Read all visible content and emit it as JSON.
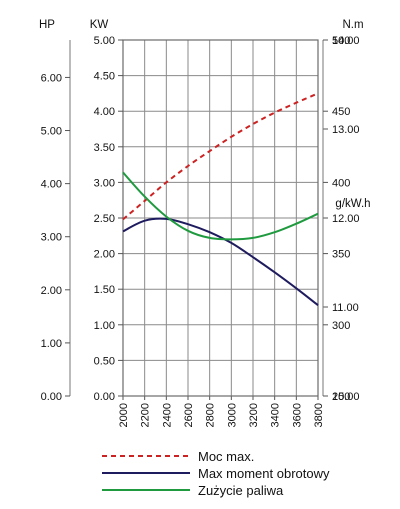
{
  "chart_data": {
    "type": "line",
    "title": "",
    "x": [
      2000,
      2200,
      2400,
      2600,
      2800,
      3000,
      3200,
      3400,
      3600,
      3800
    ],
    "x_tick_labels": [
      "2000",
      "2200",
      "2400",
      "2600",
      "2800",
      "3000",
      "3200",
      "3400",
      "3600",
      "3800"
    ],
    "xlim": [
      2000,
      3800
    ],
    "grid": true,
    "legend_position": "bottom",
    "axes": {
      "hp": {
        "label": "HP",
        "ticks": [
          "0.00",
          "1.00",
          "2.00",
          "3.00",
          "4.00",
          "5.00",
          "6.00"
        ],
        "range": [
          0,
          6.705
        ]
      },
      "kw": {
        "label": "KW",
        "ticks": [
          "0.00",
          "0.50",
          "1.00",
          "1.50",
          "2.00",
          "2.50",
          "3.00",
          "3.50",
          "4.00",
          "4.50",
          "5.00"
        ],
        "range": [
          0,
          5
        ]
      },
      "torque": {
        "label": "N.m",
        "ticks": [
          "10.00",
          "11.00",
          "12.00",
          "13.00",
          "14.00"
        ],
        "range": [
          10,
          14
        ]
      },
      "fuel": {
        "label": "g/kW.h",
        "ticks": [
          "250",
          "300",
          "350",
          "400",
          "450",
          "500"
        ],
        "range": [
          250,
          500
        ]
      }
    },
    "series": [
      {
        "name": "Moc max.",
        "axis": "kw",
        "color": "#cc2222",
        "dash": "dashed",
        "values": [
          2.48,
          2.74,
          3.0,
          3.23,
          3.44,
          3.64,
          3.82,
          3.98,
          4.12,
          4.25
        ]
      },
      {
        "name": "Max moment obrotowy",
        "axis": "torque",
        "color": "#1e1b5e",
        "dash": "solid",
        "values": [
          11.85,
          11.97,
          11.99,
          11.93,
          11.84,
          11.72,
          11.56,
          11.39,
          11.21,
          11.02
        ]
      },
      {
        "name": "Zużycie paliwa",
        "axis": "fuel",
        "color": "#1f9a3f",
        "dash": "solid",
        "values": [
          407,
          390,
          376,
          366,
          361,
          360,
          361,
          365,
          371,
          378
        ]
      }
    ]
  }
}
